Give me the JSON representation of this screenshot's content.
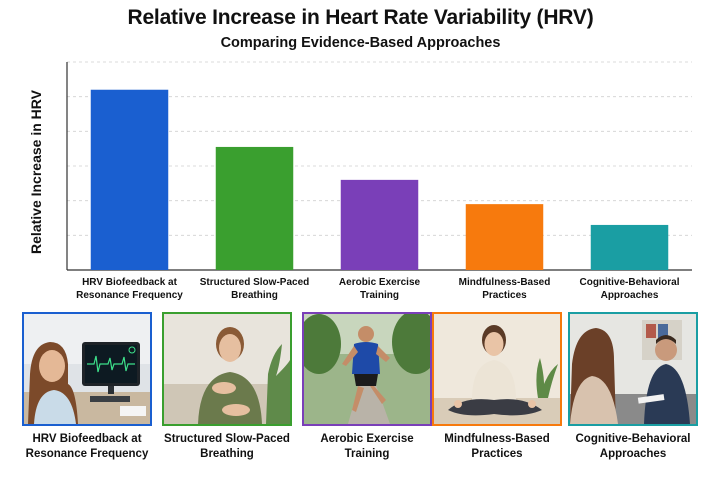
{
  "chart_data": {
    "type": "bar",
    "title": "Relative Increase in Heart Rate Variability (HRV)",
    "subtitle": "Comparing Evidence-Based Approaches",
    "xlabel": "",
    "ylabel": "Relative Increase in HRV",
    "ylim": [
      0,
      6
    ],
    "grid": true,
    "tick_labels_shown": false,
    "categories": [
      "HRV Biofeedback at Resonance Frequency",
      "Structured Slow-Paced Breathing",
      "Aerobic Exercise Training",
      "Mindfulness-Based Practices",
      "Cognitive-Behavioral Approaches"
    ],
    "category_lines": [
      [
        "HRV Biofeedback at",
        "Resonance Frequency"
      ],
      [
        "Structured Slow-Paced",
        "Breathing"
      ],
      [
        "Aerobic Exercise",
        "Training"
      ],
      [
        "Mindfulness-Based",
        "Practices"
      ],
      [
        "Cognitive-Behavioral",
        "Approaches"
      ]
    ],
    "values": [
      5.2,
      3.55,
      2.6,
      1.9,
      1.3
    ],
    "colors": [
      "#1a5fd0",
      "#3a9f2f",
      "#7a3fb8",
      "#f77a0d",
      "#1a9ea3"
    ]
  },
  "panels": [
    {
      "icon": "hrv-biofeedback-monitor-photo",
      "caption_lines": [
        "HRV Biofeedback at",
        "Resonance Frequency"
      ],
      "border": "#1a5fd0"
    },
    {
      "icon": "slow-breathing-woman-photo",
      "caption_lines": [
        "Structured Slow-Paced",
        "Breathing"
      ],
      "border": "#3a9f2f"
    },
    {
      "icon": "runner-park-photo",
      "caption_lines": [
        "Aerobic Exercise",
        "Training"
      ],
      "border": "#7a3fb8"
    },
    {
      "icon": "meditation-woman-photo",
      "caption_lines": [
        "Mindfulness-Based",
        "Practices"
      ],
      "border": "#f77a0d"
    },
    {
      "icon": "therapy-session-photo",
      "caption_lines": [
        "Cognitive-Behavioral",
        "Approaches"
      ],
      "border": "#1a9ea3"
    }
  ]
}
